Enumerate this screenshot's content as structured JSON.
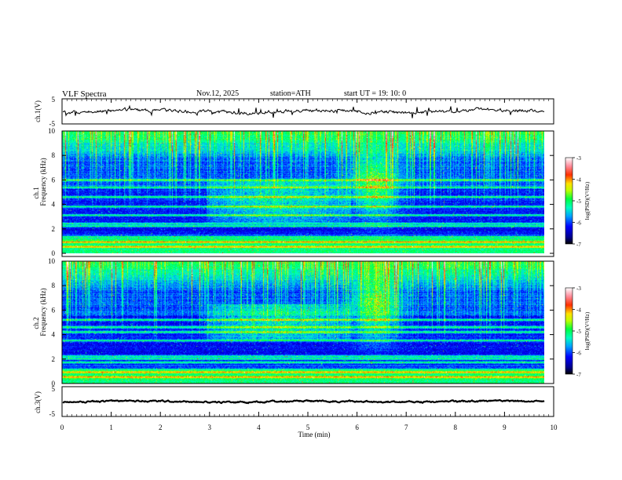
{
  "header": {
    "title": "VLF  Spectra",
    "date": "Nov.12, 2025",
    "station": "station=ATH",
    "start": "start  UT  =    19: 10: 0"
  },
  "chart_data": [
    {
      "type": "line",
      "ylabel": "ch.1(V)",
      "ylim": [
        -5,
        5
      ],
      "yticks": [
        "5",
        "-5"
      ],
      "xlim": [
        0,
        10
      ],
      "trace_mean": 0,
      "trace_amplitude": 0.8
    },
    {
      "type": "heatmap",
      "ylabel": "ch.1\nFrequency (kHz)",
      "ylim": [
        0,
        10
      ],
      "yticks": [
        "0",
        "2",
        "4",
        "6",
        "8",
        "10"
      ],
      "xlim": [
        0,
        10
      ],
      "colorbar": {
        "label": "log(PSD)(V²/Hz)",
        "range": [
          -7,
          -3
        ],
        "ticks": [
          "-3",
          "-4",
          "-5",
          "-6",
          "-7"
        ]
      },
      "features": {
        "noise_bands_khz": [
          0.5,
          0.9,
          1.3,
          2.2,
          2.4,
          3.1,
          3.8,
          4.6,
          5.4,
          6.0
        ],
        "hiss_event": {
          "t_min": [
            3.0,
            6.0
          ],
          "f_khz": [
            2.5,
            6.0
          ]
        },
        "chorus_event": {
          "t_min": [
            6.0,
            7.0
          ],
          "f_khz": [
            3.0,
            8.0
          ]
        }
      }
    },
    {
      "type": "heatmap",
      "ylabel": "ch.2\nFrequency (kHz)",
      "ylim": [
        0,
        10
      ],
      "yticks": [
        "0",
        "2",
        "4",
        "6",
        "8",
        "10"
      ],
      "xlim": [
        0,
        10
      ],
      "colorbar": {
        "label": "log(PSD)(V²/Hz)",
        "range": [
          -7,
          -3
        ],
        "ticks": [
          "-3",
          "-4",
          "-5",
          "-6",
          "-7"
        ]
      },
      "features": {
        "noise_bands_khz": [
          0.5,
          0.9,
          1.7,
          2.0,
          2.2,
          3.5,
          4.2,
          4.6,
          5.2
        ],
        "hiss_event": {
          "t_min": [
            3.0,
            6.0
          ],
          "f_khz": [
            3.5,
            6.5
          ]
        },
        "chorus_event": {
          "t_min": [
            6.0,
            7.0
          ],
          "f_khz": [
            4.5,
            8.0
          ]
        }
      }
    },
    {
      "type": "line",
      "ylabel": "ch.3(V)",
      "ylim": [
        -5,
        5
      ],
      "yticks": [
        "5",
        "-5"
      ],
      "xlim": [
        0,
        10
      ],
      "xlabel": "Time  (min)",
      "xticks": [
        "0",
        "1",
        "2",
        "3",
        "4",
        "5",
        "6",
        "7",
        "8",
        "9",
        "10"
      ],
      "trace_mean": 0,
      "trace_amplitude": 0.3
    }
  ]
}
